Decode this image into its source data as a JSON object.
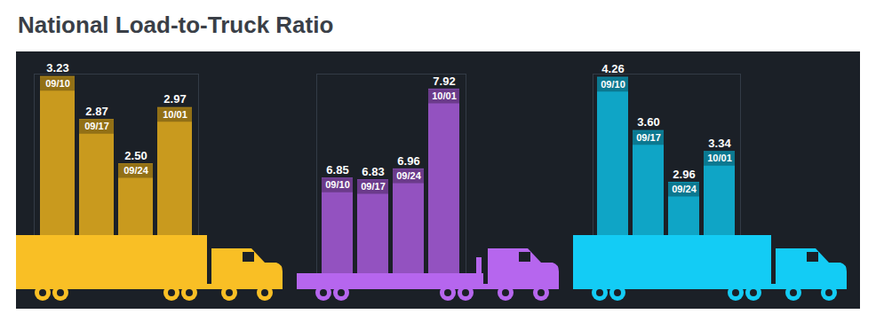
{
  "title": "National Load-to-Truck Ratio",
  "chart_data": [
    {
      "type": "bar",
      "categories": [
        "09/10",
        "09/17",
        "09/24",
        "10/01"
      ],
      "values": [
        3.23,
        2.87,
        2.5,
        2.97
      ],
      "value_labels": [
        "3.23",
        "2.87",
        "2.50",
        "2.97"
      ],
      "color": "#c99a1e",
      "ylim": [
        1.9,
        3.25
      ],
      "data_labels": true,
      "tick_labels": false
    },
    {
      "type": "bar",
      "categories": [
        "09/10",
        "09/17",
        "09/24",
        "10/01"
      ],
      "values": [
        6.85,
        6.83,
        6.96,
        7.92
      ],
      "value_labels": [
        "6.85",
        "6.83",
        "6.96",
        "7.92"
      ],
      "color": "#9352c0",
      "ylim": [
        5.7,
        8.1
      ],
      "data_labels": true,
      "tick_labels": false
    },
    {
      "type": "bar",
      "categories": [
        "09/10",
        "09/17",
        "09/24",
        "10/01"
      ],
      "values": [
        4.26,
        3.6,
        2.96,
        3.34
      ],
      "value_labels": [
        "4.26",
        "3.60",
        "2.96",
        "3.34"
      ],
      "color": "#0fa5c6",
      "ylim": [
        2.3,
        4.3
      ],
      "data_labels": true,
      "tick_labels": false
    }
  ]
}
